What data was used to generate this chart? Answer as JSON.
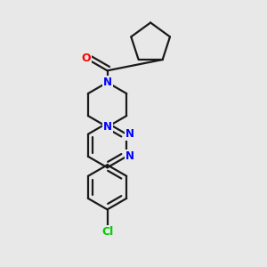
{
  "background_color": "#e8e8e8",
  "bond_color": "#1a1a1a",
  "N_color": "#0000ff",
  "O_color": "#ff0000",
  "Cl_color": "#00cc00",
  "line_width": 1.6,
  "figsize": [
    3.0,
    3.0
  ],
  "dpi": 100,
  "xlim": [
    0.0,
    1.0
  ],
  "ylim": [
    0.0,
    1.0
  ]
}
